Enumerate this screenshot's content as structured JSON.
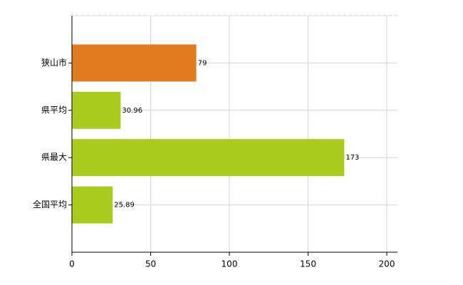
{
  "chart_data": {
    "type": "hbar",
    "categories": [
      "狭山市",
      "県平均",
      "県最大",
      "全国平均"
    ],
    "values": [
      79,
      30.96,
      173,
      25.89
    ],
    "colors": [
      "#e07b1f",
      "#a9cc1e",
      "#a9cc1e",
      "#a9cc1e"
    ],
    "xlim": [
      0,
      200
    ],
    "xticks": [
      0,
      50,
      100,
      150,
      200
    ],
    "grid": true
  }
}
